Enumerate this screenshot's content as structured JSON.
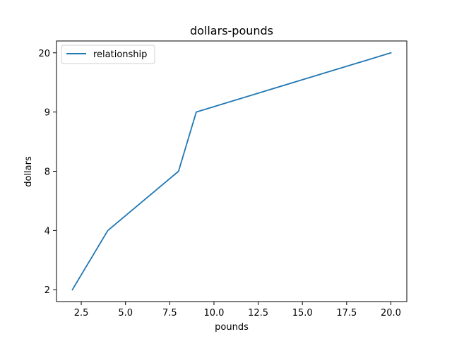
{
  "chart_data": {
    "type": "line",
    "title": "dollars-pounds",
    "xlabel": "pounds",
    "ylabel": "dollars",
    "x": [
      2,
      4,
      8,
      9,
      20
    ],
    "y_categories": [
      "2",
      "4",
      "8",
      "9",
      "20"
    ],
    "series": [
      {
        "name": "relationship",
        "y": [
          "2",
          "4",
          "8",
          "9",
          "20"
        ],
        "color": "#1f77b4"
      }
    ],
    "xlim": [
      1.1,
      20.9
    ],
    "x_ticks": [
      2.5,
      5.0,
      7.5,
      10.0,
      12.5,
      15.0,
      17.5,
      20.0
    ],
    "x_tick_labels": [
      "2.5",
      "5.0",
      "7.5",
      "10.0",
      "12.5",
      "15.0",
      "17.5",
      "20.0"
    ],
    "y_scale": "categorical",
    "legend_position": "top-left",
    "grid": false
  }
}
